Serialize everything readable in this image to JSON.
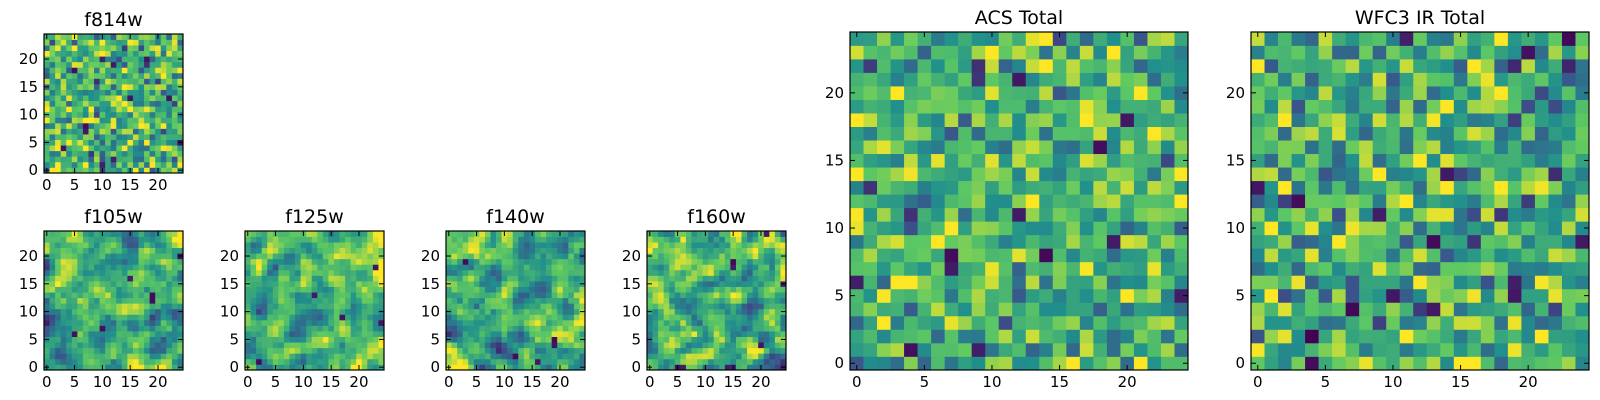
{
  "figure": {
    "description_free": true
  },
  "colormap": {
    "name": "viridis",
    "stops": [
      "#440154",
      "#3b528b",
      "#21908c",
      "#5dc863",
      "#fde725"
    ]
  },
  "chart_data": [
    {
      "id": "f814w",
      "type": "heatmap",
      "title": "f814w",
      "grid_size": 25,
      "xlim": [
        -0.5,
        24.5
      ],
      "ylim": [
        -0.5,
        24.5
      ],
      "xticks": [
        0,
        5,
        10,
        15,
        20
      ],
      "yticks": [
        0,
        5,
        10,
        15,
        20
      ],
      "xticklabels": [
        "0",
        "5",
        "10",
        "15",
        "20"
      ],
      "yticklabels": [
        "0",
        "5",
        "10",
        "15",
        "20"
      ],
      "value_range": [
        0,
        1
      ],
      "seed": 814,
      "smooth": 0,
      "bias": 0.66,
      "spread": 0.2,
      "dark_cells": [
        [
          7,
          7
        ],
        [
          7,
          8
        ],
        [
          3,
          4
        ],
        [
          12,
          2
        ],
        [
          18,
          20
        ],
        [
          22,
          13
        ],
        [
          24,
          5
        ],
        [
          5,
          18
        ]
      ]
    },
    {
      "id": "f105w",
      "type": "heatmap",
      "title": "f105w",
      "grid_size": 25,
      "xlim": [
        -0.5,
        24.5
      ],
      "ylim": [
        -0.5,
        24.5
      ],
      "xticks": [
        0,
        5,
        10,
        15,
        20
      ],
      "yticks": [
        0,
        5,
        10,
        15,
        20
      ],
      "xticklabels": [
        "0",
        "5",
        "10",
        "15",
        "20"
      ],
      "yticklabels": [
        "0",
        "5",
        "10",
        "15",
        "20"
      ],
      "value_range": [
        0,
        1
      ],
      "seed": 105,
      "smooth": 1,
      "bias": 0.64,
      "spread": 0.26,
      "dark_cells": [
        [
          24,
          20
        ],
        [
          19,
          13
        ],
        [
          19,
          12
        ],
        [
          15,
          16
        ],
        [
          10,
          7
        ],
        [
          5,
          6
        ]
      ]
    },
    {
      "id": "f125w",
      "type": "heatmap",
      "title": "f125w",
      "grid_size": 25,
      "xlim": [
        -0.5,
        24.5
      ],
      "ylim": [
        -0.5,
        24.5
      ],
      "xticks": [
        0,
        5,
        10,
        15,
        20
      ],
      "yticks": [
        0,
        5,
        10,
        15,
        20
      ],
      "xticklabels": [
        "0",
        "5",
        "10",
        "15",
        "20"
      ],
      "yticklabels": [
        "0",
        "5",
        "10",
        "15",
        "20"
      ],
      "value_range": [
        0,
        1
      ],
      "seed": 125,
      "smooth": 1,
      "bias": 0.66,
      "spread": 0.25,
      "dark_cells": [
        [
          23,
          18
        ],
        [
          17,
          9
        ],
        [
          24,
          8
        ],
        [
          2,
          1
        ],
        [
          12,
          13
        ]
      ]
    },
    {
      "id": "f140w",
      "type": "heatmap",
      "title": "f140w",
      "grid_size": 25,
      "xlim": [
        -0.5,
        24.5
      ],
      "ylim": [
        -0.5,
        24.5
      ],
      "xticks": [
        0,
        5,
        10,
        15,
        20
      ],
      "yticks": [
        0,
        5,
        10,
        15,
        20
      ],
      "xticklabels": [
        "0",
        "5",
        "10",
        "15",
        "20"
      ],
      "yticklabels": [
        "0",
        "5",
        "10",
        "15",
        "20"
      ],
      "value_range": [
        0,
        1
      ],
      "seed": 140,
      "smooth": 1,
      "bias": 0.65,
      "spread": 0.26,
      "dark_cells": [
        [
          19,
          4
        ],
        [
          19,
          5
        ],
        [
          3,
          19
        ],
        [
          12,
          2
        ],
        [
          16,
          1
        ]
      ]
    },
    {
      "id": "f160w",
      "type": "heatmap",
      "title": "f160w",
      "grid_size": 25,
      "xlim": [
        -0.5,
        24.5
      ],
      "ylim": [
        -0.5,
        24.5
      ],
      "xticks": [
        0,
        5,
        10,
        15,
        20
      ],
      "yticks": [
        0,
        5,
        10,
        15,
        20
      ],
      "xticklabels": [
        "0",
        "5",
        "10",
        "15",
        "20"
      ],
      "yticklabels": [
        "0",
        "5",
        "10",
        "15",
        "20"
      ],
      "value_range": [
        0,
        1
      ],
      "seed": 160,
      "smooth": 1,
      "bias": 0.63,
      "spread": 0.27,
      "dark_cells": [
        [
          5,
          0
        ],
        [
          6,
          0
        ],
        [
          15,
          18
        ],
        [
          15,
          19
        ],
        [
          14,
          0
        ],
        [
          15,
          0
        ],
        [
          21,
          24
        ],
        [
          24,
          15
        ],
        [
          20,
          4
        ]
      ]
    },
    {
      "id": "acs-total",
      "type": "heatmap",
      "title": "ACS Total",
      "grid_size": 25,
      "xlim": [
        -0.5,
        24.5
      ],
      "ylim": [
        -0.5,
        24.5
      ],
      "xticks": [
        0,
        5,
        10,
        15,
        20
      ],
      "yticks": [
        0,
        5,
        10,
        15,
        20
      ],
      "xticklabels": [
        "0",
        "5",
        "10",
        "15",
        "20"
      ],
      "yticklabels": [
        "0",
        "5",
        "10",
        "15",
        "20"
      ],
      "value_range": [
        0,
        1
      ],
      "seed": 2001,
      "smooth": 0,
      "bias": 0.66,
      "spread": 0.19,
      "dark_cells": [
        [
          7,
          7
        ],
        [
          7,
          8
        ],
        [
          12,
          21
        ],
        [
          12,
          11
        ],
        [
          4,
          1
        ],
        [
          19,
          9
        ],
        [
          20,
          18
        ],
        [
          18,
          16
        ],
        [
          24,
          5
        ],
        [
          0,
          6
        ],
        [
          14,
          8
        ],
        [
          9,
          1
        ]
      ]
    },
    {
      "id": "wfc3-ir-total",
      "type": "heatmap",
      "title": "WFC3 IR Total",
      "grid_size": 25,
      "xlim": [
        -0.5,
        24.5
      ],
      "ylim": [
        -0.5,
        24.5
      ],
      "xticks": [
        0,
        5,
        10,
        15,
        20
      ],
      "yticks": [
        0,
        5,
        10,
        15,
        20
      ],
      "xticklabels": [
        "0",
        "5",
        "10",
        "15",
        "20"
      ],
      "yticklabels": [
        "0",
        "5",
        "10",
        "15",
        "20"
      ],
      "value_range": [
        0,
        1
      ],
      "seed": 3003,
      "smooth": 0,
      "bias": 0.62,
      "spread": 0.21,
      "dark_cells": [
        [
          23,
          24
        ],
        [
          20,
          23
        ],
        [
          3,
          12
        ],
        [
          0,
          13
        ],
        [
          7,
          4
        ],
        [
          10,
          5
        ],
        [
          19,
          5
        ],
        [
          19,
          6
        ],
        [
          4,
          0
        ],
        [
          14,
          14
        ],
        [
          24,
          9
        ],
        [
          13,
          4
        ]
      ]
    }
  ]
}
